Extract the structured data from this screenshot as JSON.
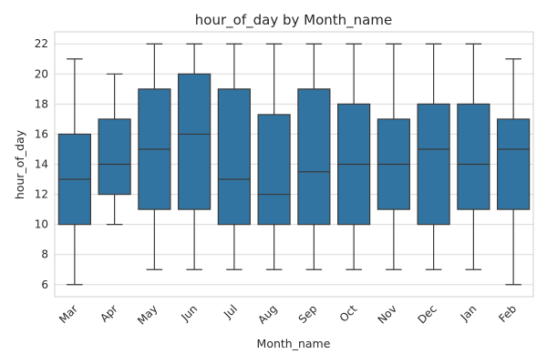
{
  "chart_data": {
    "type": "box",
    "title": "hour_of_day by Month_name",
    "xlabel": "Month_name",
    "ylabel": "hour_of_day",
    "ylim": [
      5.2,
      22.8
    ],
    "yticks": [
      6,
      8,
      10,
      12,
      14,
      16,
      18,
      20,
      22
    ],
    "grid": true,
    "box_color": "#3274a1",
    "categories": [
      "Mar",
      "Apr",
      "May",
      "Jun",
      "Jul",
      "Aug",
      "Sep",
      "Oct",
      "Nov",
      "Dec",
      "Jan",
      "Feb"
    ],
    "boxes": [
      {
        "whislo": 6,
        "q1": 10,
        "med": 13,
        "q3": 16,
        "whishi": 21
      },
      {
        "whislo": 10,
        "q1": 12,
        "med": 14,
        "q3": 17,
        "whishi": 20
      },
      {
        "whislo": 7,
        "q1": 11,
        "med": 15,
        "q3": 19,
        "whishi": 22
      },
      {
        "whislo": 7,
        "q1": 11,
        "med": 16,
        "q3": 20,
        "whishi": 22
      },
      {
        "whislo": 7,
        "q1": 10,
        "med": 13,
        "q3": 19,
        "whishi": 22
      },
      {
        "whislo": 7,
        "q1": 10,
        "med": 12,
        "q3": 17.3,
        "whishi": 22
      },
      {
        "whislo": 7,
        "q1": 10,
        "med": 13.5,
        "q3": 19,
        "whishi": 22
      },
      {
        "whislo": 7,
        "q1": 10,
        "med": 14,
        "q3": 18,
        "whishi": 22
      },
      {
        "whislo": 7,
        "q1": 11,
        "med": 14,
        "q3": 17,
        "whishi": 22
      },
      {
        "whislo": 7,
        "q1": 10,
        "med": 15,
        "q3": 18,
        "whishi": 22
      },
      {
        "whislo": 7,
        "q1": 11,
        "med": 14,
        "q3": 18,
        "whishi": 22
      },
      {
        "whislo": 6,
        "q1": 11,
        "med": 15,
        "q3": 17,
        "whishi": 21
      }
    ]
  }
}
